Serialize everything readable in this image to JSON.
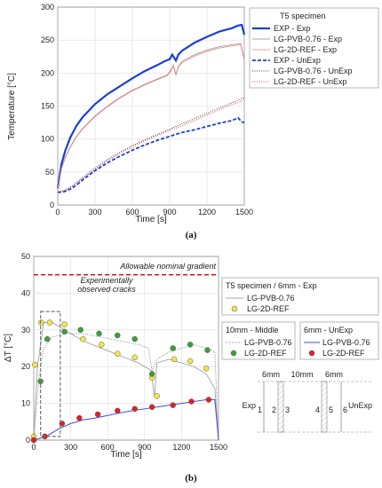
{
  "chart_data": [
    {
      "type": "line",
      "panel_label": "(a)",
      "xlabel": "Time  [s]",
      "ylabel": "Temperature  [°C]",
      "xlim": [
        0,
        1500
      ],
      "ylim": [
        0,
        300
      ],
      "xticks": [
        "0",
        "300",
        "600",
        "900",
        "1200",
        "1500"
      ],
      "yticks": [
        "0",
        "50",
        "100",
        "150",
        "200",
        "250",
        "300"
      ],
      "legend_title": "T5 specimen",
      "legend_position": "right",
      "series": [
        {
          "name": "EXP - Exp",
          "color": "#1a3fd6",
          "style": "solid-thick",
          "x": [
            0,
            30,
            60,
            100,
            150,
            200,
            300,
            400,
            500,
            600,
            700,
            800,
            860,
            900,
            920,
            950,
            970,
            1000,
            1100,
            1200,
            1300,
            1400,
            1450,
            1480,
            1500
          ],
          "y": [
            25,
            62,
            82,
            102,
            120,
            133,
            153,
            168,
            180,
            192,
            203,
            212,
            218,
            221,
            228,
            219,
            228,
            234,
            246,
            255,
            263,
            268,
            272,
            273,
            258
          ]
        },
        {
          "name": "LG-PVB-0.76 - Exp",
          "color": "#aaaaaa",
          "style": "solid",
          "x": [
            0,
            30,
            60,
            100,
            150,
            200,
            300,
            400,
            500,
            600,
            700,
            800,
            880,
            910,
            930,
            950,
            970,
            1000,
            1100,
            1200,
            1300,
            1400,
            1470,
            1500
          ],
          "y": [
            25,
            55,
            72,
            88,
            104,
            116,
            135,
            150,
            163,
            174,
            183,
            191,
            197,
            205,
            212,
            198,
            210,
            218,
            228,
            235,
            240,
            243,
            245,
            222
          ]
        },
        {
          "name": "LG-2D-REF - Exp",
          "color": "#e88080",
          "style": "solid-thin",
          "x": [
            0,
            30,
            60,
            100,
            150,
            200,
            300,
            400,
            500,
            600,
            700,
            800,
            880,
            910,
            930,
            950,
            970,
            1000,
            1100,
            1200,
            1300,
            1400,
            1470,
            1500
          ],
          "y": [
            25,
            55,
            71,
            87,
            103,
            115,
            134,
            149,
            162,
            173,
            182,
            190,
            196,
            203,
            211,
            197,
            209,
            216,
            226,
            233,
            238,
            241,
            243,
            220
          ]
        },
        {
          "name": "EXP - UnExp",
          "color": "#1a3fd6",
          "style": "dashed",
          "x": [
            0,
            50,
            100,
            150,
            200,
            300,
            400,
            500,
            600,
            700,
            800,
            900,
            1000,
            1100,
            1200,
            1300,
            1400,
            1450,
            1480,
            1500
          ],
          "y": [
            19,
            20,
            24,
            30,
            38,
            52,
            64,
            74,
            83,
            91,
            98,
            104,
            110,
            114,
            119,
            124,
            128,
            132,
            126,
            125
          ]
        },
        {
          "name": "LG-PVB-0.76 - UnExp",
          "color": "#444444",
          "style": "dotted",
          "x": [
            0,
            50,
            100,
            150,
            200,
            300,
            400,
            500,
            600,
            700,
            800,
            900,
            1000,
            1100,
            1200,
            1300,
            1400,
            1500
          ],
          "y": [
            20,
            22,
            27,
            34,
            42,
            56,
            69,
            80,
            90,
            99,
            107,
            115,
            123,
            131,
            139,
            147,
            155,
            163
          ]
        },
        {
          "name": "LG-2D-REF - UnExp",
          "color": "#e05050",
          "style": "dotted",
          "x": [
            0,
            50,
            100,
            150,
            200,
            300,
            400,
            500,
            600,
            700,
            800,
            900,
            1000,
            1100,
            1200,
            1300,
            1400,
            1500
          ],
          "y": [
            20,
            21,
            26,
            33,
            40,
            54,
            67,
            78,
            88,
            97,
            105,
            113,
            120,
            128,
            136,
            144,
            152,
            159
          ]
        }
      ]
    },
    {
      "type": "line",
      "panel_label": "(b)",
      "xlabel": "Time  [s]",
      "ylabel": "ΔT  [°C]",
      "xlim": [
        0,
        1500
      ],
      "ylim": [
        0,
        50
      ],
      "xticks": [
        "0",
        "300",
        "600",
        "900",
        "1200",
        "1500"
      ],
      "yticks": [
        "0",
        "10",
        "20",
        "30",
        "40",
        "50"
      ],
      "reference_line": {
        "label": "Allowable nominal gradient",
        "y": 45,
        "color": "#dd0000"
      },
      "annotation": "Experimentally\nobserved cracks",
      "crack_box": {
        "x": [
          55,
          215
        ],
        "y": [
          1,
          35
        ]
      },
      "legend_groups": [
        {
          "title": "T5 specimen / 6mm - Exp",
          "entries": [
            "LG-PVB-0.76",
            "LG-2D-REF"
          ],
          "marker": "#f5e642"
        },
        {
          "title": "10mm - Middle",
          "entries": [
            "LG-PVB-0.76",
            "LG-2D-REF"
          ],
          "marker": "#3aa03a"
        },
        {
          "title": "6mm - UnExp",
          "entries": [
            "LG-PVB-0.76",
            "LG-2D-REF"
          ],
          "marker": "#dd2222"
        }
      ],
      "series": [
        {
          "name": "LG-PVB-0.76",
          "group": "6mm - Exp",
          "color": "#aaaaaa",
          "style": "solid",
          "x": [
            0,
            30,
            80,
            150,
            250,
            400,
            550,
            700,
            850,
            900,
            950,
            980,
            1000,
            1100,
            1200,
            1300,
            1400,
            1470,
            1500
          ],
          "y": [
            1,
            20,
            32,
            32,
            30,
            27,
            25,
            23,
            21,
            20,
            19,
            12,
            21,
            22,
            21,
            20,
            18,
            14,
            0
          ]
        },
        {
          "name": "LG-2D-REF",
          "group": "6mm - Exp",
          "color": "#f5e642",
          "style": "markers",
          "x": [
            0,
            10,
            60,
            130,
            250,
            400,
            550,
            680,
            820,
            960,
            1000,
            1140,
            1270,
            1400
          ],
          "y": [
            1,
            20.5,
            32,
            32,
            31.5,
            27.5,
            26,
            23.5,
            22.5,
            17,
            12,
            22,
            21.5,
            19.5
          ]
        },
        {
          "name": "LG-PVB-0.76",
          "group": "10mm - Middle",
          "color": "#888888",
          "style": "dotted",
          "x": [
            0,
            40,
            80,
            150,
            250,
            400,
            550,
            700,
            850,
            930,
            960,
            1000,
            1100,
            1200,
            1300,
            1400,
            1470,
            1500
          ],
          "y": [
            0,
            16,
            25,
            28,
            29,
            29,
            28,
            27,
            26,
            25,
            19,
            22,
            24,
            25,
            26,
            25,
            24,
            0
          ]
        },
        {
          "name": "LG-2D-REF",
          "group": "10mm - Middle",
          "color": "#3aa03a",
          "style": "markers",
          "x": [
            0,
            55,
            110,
            250,
            380,
            530,
            680,
            820,
            960,
            1130,
            1270,
            1410
          ],
          "y": [
            0,
            16,
            27.5,
            29.5,
            30,
            29,
            28.5,
            27.5,
            18,
            25,
            26,
            24.5
          ]
        },
        {
          "name": "LG-PVB-0.76",
          "group": "6mm - UnExp",
          "color": "#4a4ad8",
          "style": "solid",
          "x": [
            0,
            100,
            200,
            300,
            400,
            500,
            600,
            700,
            800,
            900,
            1000,
            1100,
            1200,
            1300,
            1400,
            1470,
            1500
          ],
          "y": [
            0,
            1,
            3,
            4.5,
            5.5,
            6,
            6.7,
            7.4,
            8,
            8.5,
            9,
            9.5,
            10,
            10.5,
            11,
            11,
            0
          ]
        },
        {
          "name": "LG-2D-REF",
          "group": "6mm - UnExp",
          "color": "#dd2222",
          "style": "markers",
          "x": [
            0,
            90,
            230,
            370,
            520,
            680,
            820,
            960,
            1130,
            1280,
            1420
          ],
          "y": [
            0,
            1,
            4.5,
            6,
            7,
            8,
            8.5,
            9,
            9.5,
            10.5,
            11
          ]
        }
      ]
    }
  ],
  "schematic": {
    "top_labels": [
      "6mm",
      "10mm",
      "6mm"
    ],
    "side_labels": [
      "Exp",
      "UnExp"
    ],
    "points": [
      "1",
      "2",
      "3",
      "4",
      "5",
      "6"
    ]
  }
}
